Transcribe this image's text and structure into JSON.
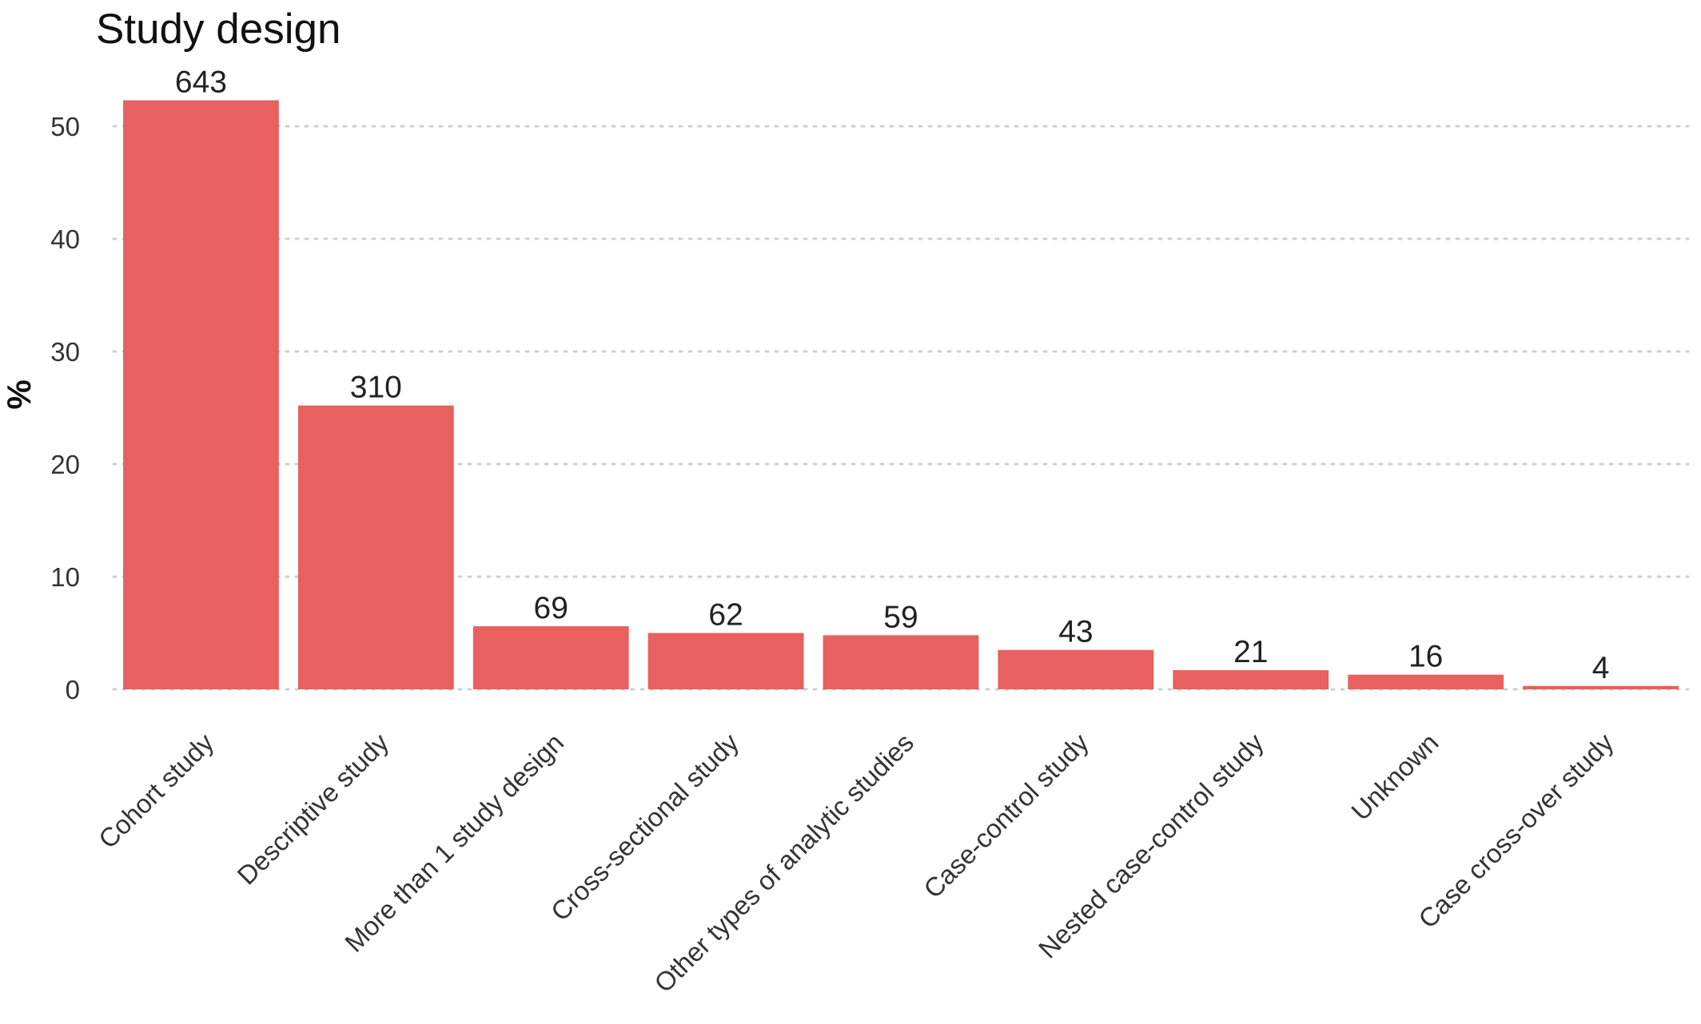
{
  "chart_data": {
    "type": "bar",
    "title": "Study design",
    "xlabel": "",
    "ylabel": "%",
    "ylim": [
      0,
      55
    ],
    "yticks": [
      0,
      10,
      20,
      30,
      40,
      50
    ],
    "grid": "horizontal dotted",
    "categories": [
      "Cohort study",
      "Descriptive study",
      "More than 1 study design",
      "Cross-sectional study",
      "Other types of analytic studies",
      "Case-control study",
      "Nested case-control study",
      "Unknown",
      "Case cross-over study"
    ],
    "values": [
      52.3,
      25.2,
      5.6,
      5.0,
      4.8,
      3.5,
      1.7,
      1.3,
      0.3
    ],
    "data_labels": [
      "643",
      "310",
      "69",
      "62",
      "59",
      "43",
      "21",
      "16",
      "4"
    ],
    "bar_color": "#e8605f"
  }
}
